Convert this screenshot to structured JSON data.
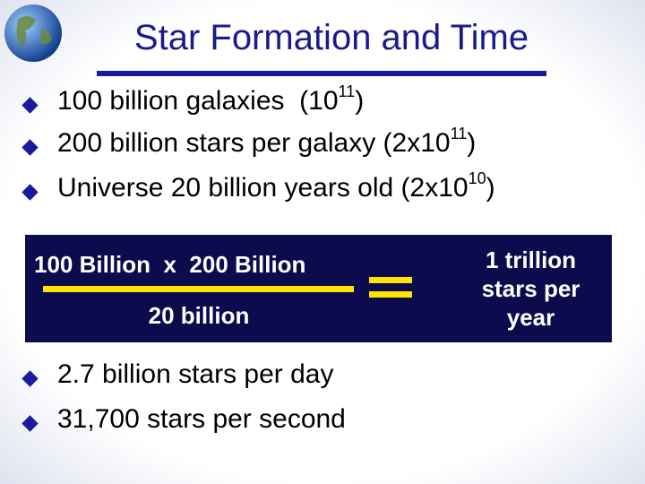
{
  "title": "Star Formation and Time",
  "bullets": [
    {
      "text": "100 billion galaxies  (10",
      "sup": "11",
      "tail": ")"
    },
    {
      "text": "200 billion stars per galaxy (2x10",
      "sup": "11",
      "tail": ")"
    },
    {
      "text": "Universe 20 billion years old (2x10",
      "sup": "10",
      "tail": ")"
    }
  ],
  "equation": {
    "numerator": "100 Billion  x  200 Billion",
    "denominator": "20 billion",
    "result": [
      "1 trillion",
      "stars per",
      "year"
    ]
  },
  "results": [
    "2.7 billion stars per day",
    "31,700 stars per second"
  ]
}
